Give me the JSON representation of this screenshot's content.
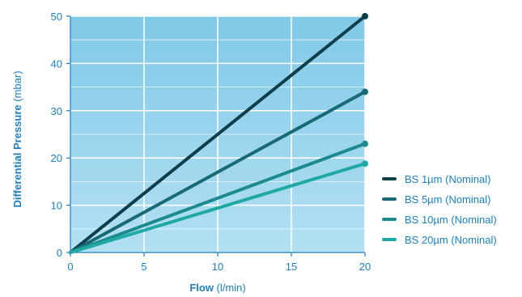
{
  "chart_data": {
    "type": "line",
    "x": [
      0,
      20
    ],
    "series": [
      {
        "name": "BS 1µm (Nominal)",
        "values": [
          0,
          50
        ],
        "color": "#0f3f4a"
      },
      {
        "name": "BS 5µm (Nominal)",
        "values": [
          0,
          34
        ],
        "color": "#176a76"
      },
      {
        "name": "BS 10µm (Nominal)",
        "values": [
          0,
          23
        ],
        "color": "#1c8a8e"
      },
      {
        "name": "BS 20µm (Nominal)",
        "values": [
          0,
          18.8
        ],
        "color": "#1fa8a4"
      }
    ],
    "xlabel": {
      "bold": "Flow",
      "normal": " (l/min)"
    },
    "ylabel": {
      "bold": "Differential Pressure",
      "normal": " (mbar)"
    },
    "xlim": [
      0,
      20
    ],
    "ylim": [
      0,
      50
    ],
    "xticks": [
      0,
      5,
      10,
      15,
      20
    ],
    "yticks": [
      0,
      10,
      20,
      30,
      40,
      50
    ],
    "grid": true,
    "legend_position": "right",
    "colors": {
      "plot_background": "#88cdea",
      "grid": "#ffffff",
      "axis": "#1d7fc0",
      "tick_label": "#1d7fc0",
      "axis_title": "#1d7fc0",
      "legend_text": "#1d7fc0"
    }
  }
}
